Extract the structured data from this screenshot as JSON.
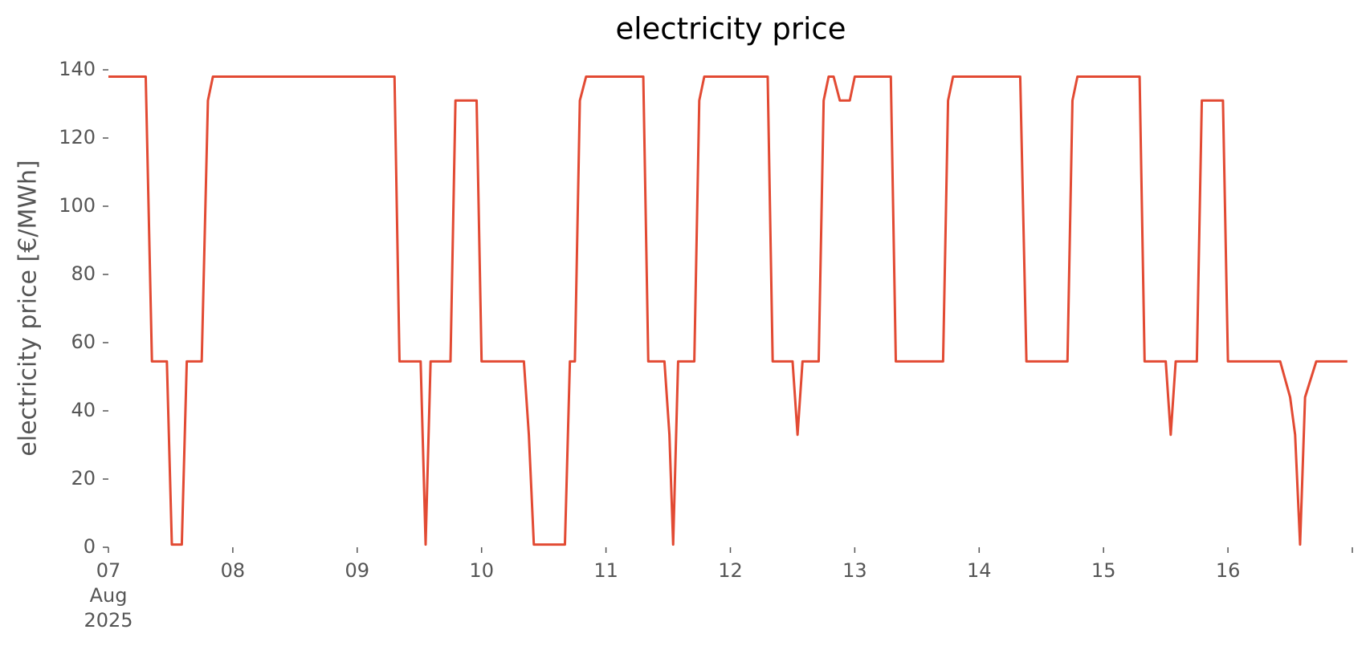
{
  "chart_data": {
    "type": "line",
    "title": "electricity price",
    "ylabel": "electricity price [€/MWh]",
    "color": "#e24a33",
    "x": [
      7.0,
      7.3,
      7.35,
      7.47,
      7.51,
      7.59,
      7.63,
      7.75,
      7.8,
      7.84,
      9.3,
      9.34,
      9.51,
      9.55,
      9.59,
      9.75,
      9.79,
      9.96,
      10.0,
      10.34,
      10.38,
      10.42,
      10.67,
      10.71,
      10.75,
      10.79,
      10.84,
      11.3,
      11.34,
      11.47,
      11.51,
      11.54,
      11.58,
      11.71,
      11.75,
      11.79,
      12.3,
      12.34,
      12.5,
      12.54,
      12.58,
      12.71,
      12.75,
      12.79,
      12.83,
      12.88,
      12.96,
      13.0,
      13.29,
      13.33,
      13.71,
      13.75,
      13.79,
      14.33,
      14.38,
      14.71,
      14.75,
      14.79,
      15.29,
      15.33,
      15.5,
      15.54,
      15.58,
      15.75,
      15.79,
      15.96,
      16.0,
      16.42,
      16.5,
      16.54,
      16.58,
      16.62,
      16.71,
      16.96
    ],
    "values": [
      138,
      138,
      54.5,
      54.5,
      0.8,
      0.8,
      54.5,
      54.5,
      131,
      138,
      138,
      54.5,
      54.5,
      0.8,
      54.5,
      54.5,
      131,
      131,
      54.5,
      54.5,
      33,
      0.8,
      0.8,
      54.5,
      54.5,
      131,
      138,
      138,
      54.5,
      54.5,
      33,
      0.8,
      54.5,
      54.5,
      131,
      138,
      138,
      54.5,
      54.5,
      33,
      54.5,
      54.5,
      131,
      138,
      138,
      131,
      131,
      138,
      138,
      54.5,
      54.5,
      131,
      138,
      138,
      54.5,
      54.5,
      131,
      138,
      138,
      54.5,
      54.5,
      33,
      54.5,
      54.5,
      131,
      131,
      54.5,
      54.5,
      44,
      33,
      0.8,
      44,
      54.5,
      54.5
    ],
    "xlim": [
      7,
      17
    ],
    "xticks": [
      {
        "value": 7,
        "label": "07\nAug\n2025"
      },
      {
        "value": 8,
        "label": "08"
      },
      {
        "value": 9,
        "label": "09"
      },
      {
        "value": 10,
        "label": "10"
      },
      {
        "value": 11,
        "label": "11"
      },
      {
        "value": 12,
        "label": "12"
      },
      {
        "value": 13,
        "label": "13"
      },
      {
        "value": 14,
        "label": "14"
      },
      {
        "value": 15,
        "label": "15"
      },
      {
        "value": 16,
        "label": "16"
      },
      {
        "value": 17,
        "label": null
      }
    ],
    "ylim": [
      0,
      140
    ],
    "yticks": [
      0,
      20,
      40,
      60,
      80,
      100,
      120,
      140
    ],
    "grid": false
  }
}
